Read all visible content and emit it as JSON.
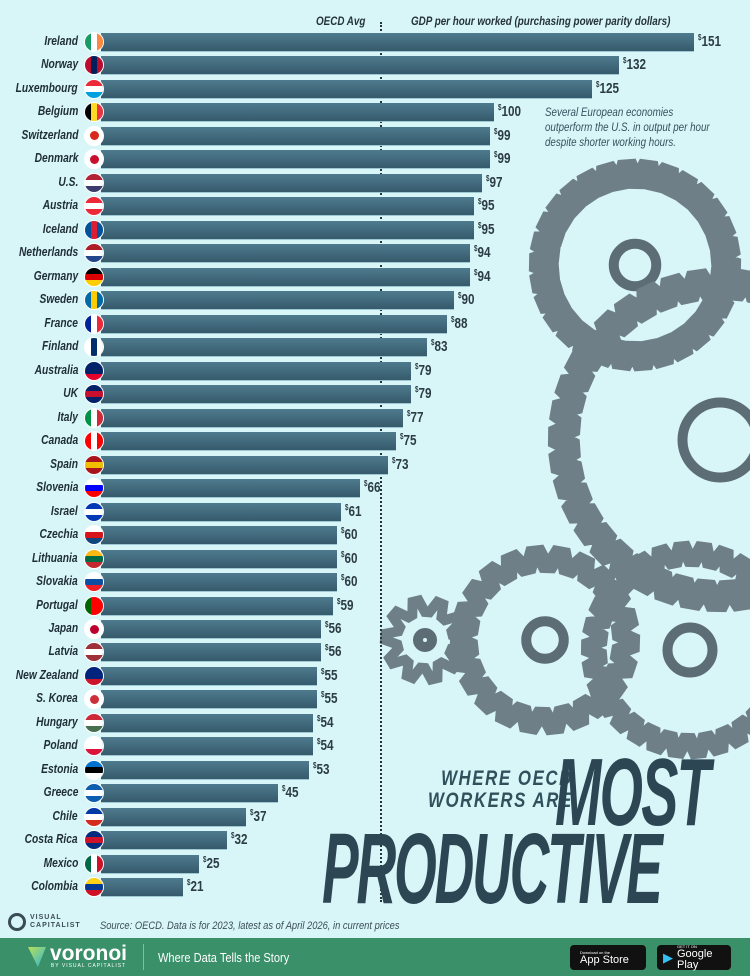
{
  "chart_data": {
    "type": "bar",
    "orientation": "horizontal",
    "title": "Where OECD Workers Are Most Productive",
    "axis_label": "GDP per hour worked (purchasing power parity dollars)",
    "reference_line": {
      "label": "OECD Avg",
      "value": 71
    },
    "value_prefix": "$",
    "xlim": [
      0,
      151
    ],
    "grid": false,
    "categories": [
      "Ireland",
      "Norway",
      "Luxembourg",
      "Belgium",
      "Switzerland",
      "Denmark",
      "U.S.",
      "Austria",
      "Iceland",
      "Netherlands",
      "Germany",
      "Sweden",
      "France",
      "Finland",
      "Australia",
      "UK",
      "Italy",
      "Canada",
      "Spain",
      "Slovenia",
      "Israel",
      "Czechia",
      "Lithuania",
      "Slovakia",
      "Portugal",
      "Japan",
      "Latvia",
      "New Zealand",
      "S. Korea",
      "Hungary",
      "Poland",
      "Estonia",
      "Greece",
      "Chile",
      "Costa Rica",
      "Mexico",
      "Colombia"
    ],
    "values": [
      151,
      132,
      125,
      100,
      99,
      99,
      97,
      95,
      95,
      94,
      94,
      90,
      88,
      83,
      79,
      79,
      77,
      75,
      73,
      66,
      61,
      60,
      60,
      60,
      59,
      56,
      56,
      55,
      55,
      54,
      54,
      53,
      45,
      37,
      32,
      25,
      21
    ],
    "annotation": "Several European economies outperform the U.S. in output per hour despite shorter working hours."
  },
  "flags": [
    [
      "v",
      "#169b62",
      "#ffffff",
      "#ff883e"
    ],
    [
      "v",
      "#ba0c2f",
      "#00205b",
      "#ba0c2f"
    ],
    [
      "h",
      "#ed2939",
      "#ffffff",
      "#00a1de"
    ],
    [
      "v",
      "#000000",
      "#fdda24",
      "#ef3340"
    ],
    [
      "c",
      "#da291c"
    ],
    [
      "c",
      "#c8102e"
    ],
    [
      "h",
      "#b22234",
      "#ffffff",
      "#3c3b6e"
    ],
    [
      "h",
      "#ed2939",
      "#ffffff",
      "#ed2939"
    ],
    [
      "v",
      "#02529c",
      "#dc1e35",
      "#02529c"
    ],
    [
      "h",
      "#ae1c28",
      "#ffffff",
      "#21468b"
    ],
    [
      "h",
      "#000000",
      "#dd0000",
      "#ffce00"
    ],
    [
      "v",
      "#006aa7",
      "#fecc00",
      "#006aa7"
    ],
    [
      "v",
      "#002395",
      "#ffffff",
      "#ed2939"
    ],
    [
      "v",
      "#ffffff",
      "#002f6c",
      "#ffffff"
    ],
    [
      "h",
      "#012169",
      "#012169",
      "#e4002b"
    ],
    [
      "h",
      "#012169",
      "#c8102e",
      "#012169"
    ],
    [
      "v",
      "#009246",
      "#ffffff",
      "#ce2b37"
    ],
    [
      "v",
      "#ff0000",
      "#ffffff",
      "#ff0000"
    ],
    [
      "h",
      "#aa151b",
      "#f1bf00",
      "#aa151b"
    ],
    [
      "h",
      "#ffffff",
      "#0000ff",
      "#ff0000"
    ],
    [
      "h",
      "#0038b8",
      "#ffffff",
      "#0038b8"
    ],
    [
      "h",
      "#ffffff",
      "#d7141a",
      "#11457e"
    ],
    [
      "h",
      "#fdb913",
      "#006a44",
      "#c1272d"
    ],
    [
      "h",
      "#ffffff",
      "#0b4ea2",
      "#ee1c25"
    ],
    [
      "v",
      "#006600",
      "#ff0000",
      "#ff0000"
    ],
    [
      "c",
      "#bc002d"
    ],
    [
      "h",
      "#9e3039",
      "#ffffff",
      "#9e3039"
    ],
    [
      "h",
      "#00247d",
      "#00247d",
      "#cc142b"
    ],
    [
      "c",
      "#cd2e3a"
    ],
    [
      "h",
      "#ce2939",
      "#ffffff",
      "#477050"
    ],
    [
      "h",
      "#ffffff",
      "#ffffff",
      "#dc143c"
    ],
    [
      "h",
      "#0072ce",
      "#000000",
      "#ffffff"
    ],
    [
      "h",
      "#0d5eaf",
      "#ffffff",
      "#0d5eaf"
    ],
    [
      "h",
      "#0039a6",
      "#ffffff",
      "#d52b1e"
    ],
    [
      "h",
      "#002b7f",
      "#ce1126",
      "#002b7f"
    ],
    [
      "v",
      "#006847",
      "#ffffff",
      "#ce1126"
    ],
    [
      "h",
      "#fcd116",
      "#003893",
      "#ce1126"
    ]
  ],
  "colors": {
    "background": "#d8f5f8",
    "bar": "#3f6a7d",
    "footer": "#3a9068",
    "title": "#2c4753"
  },
  "title": {
    "line1a": "WHERE OECD",
    "line1b": "WORKERS ARE",
    "most": "MOST",
    "productive": "PRODUCTIVE"
  },
  "source": "Source: OECD. Data is for 2023, latest as of April 2026, in current prices",
  "brand": {
    "vc_line1": "VISUAL",
    "vc_line2": "CAPITALIST",
    "voronoi": "voronoi",
    "voronoi_by": "BY VISUAL CAPITALIST",
    "tagline": "Where Data Tells the Story",
    "appstore_small": "Download on the",
    "appstore_big": "App Store",
    "gplay_small": "GET IT ON",
    "gplay_big": "Google Play"
  }
}
